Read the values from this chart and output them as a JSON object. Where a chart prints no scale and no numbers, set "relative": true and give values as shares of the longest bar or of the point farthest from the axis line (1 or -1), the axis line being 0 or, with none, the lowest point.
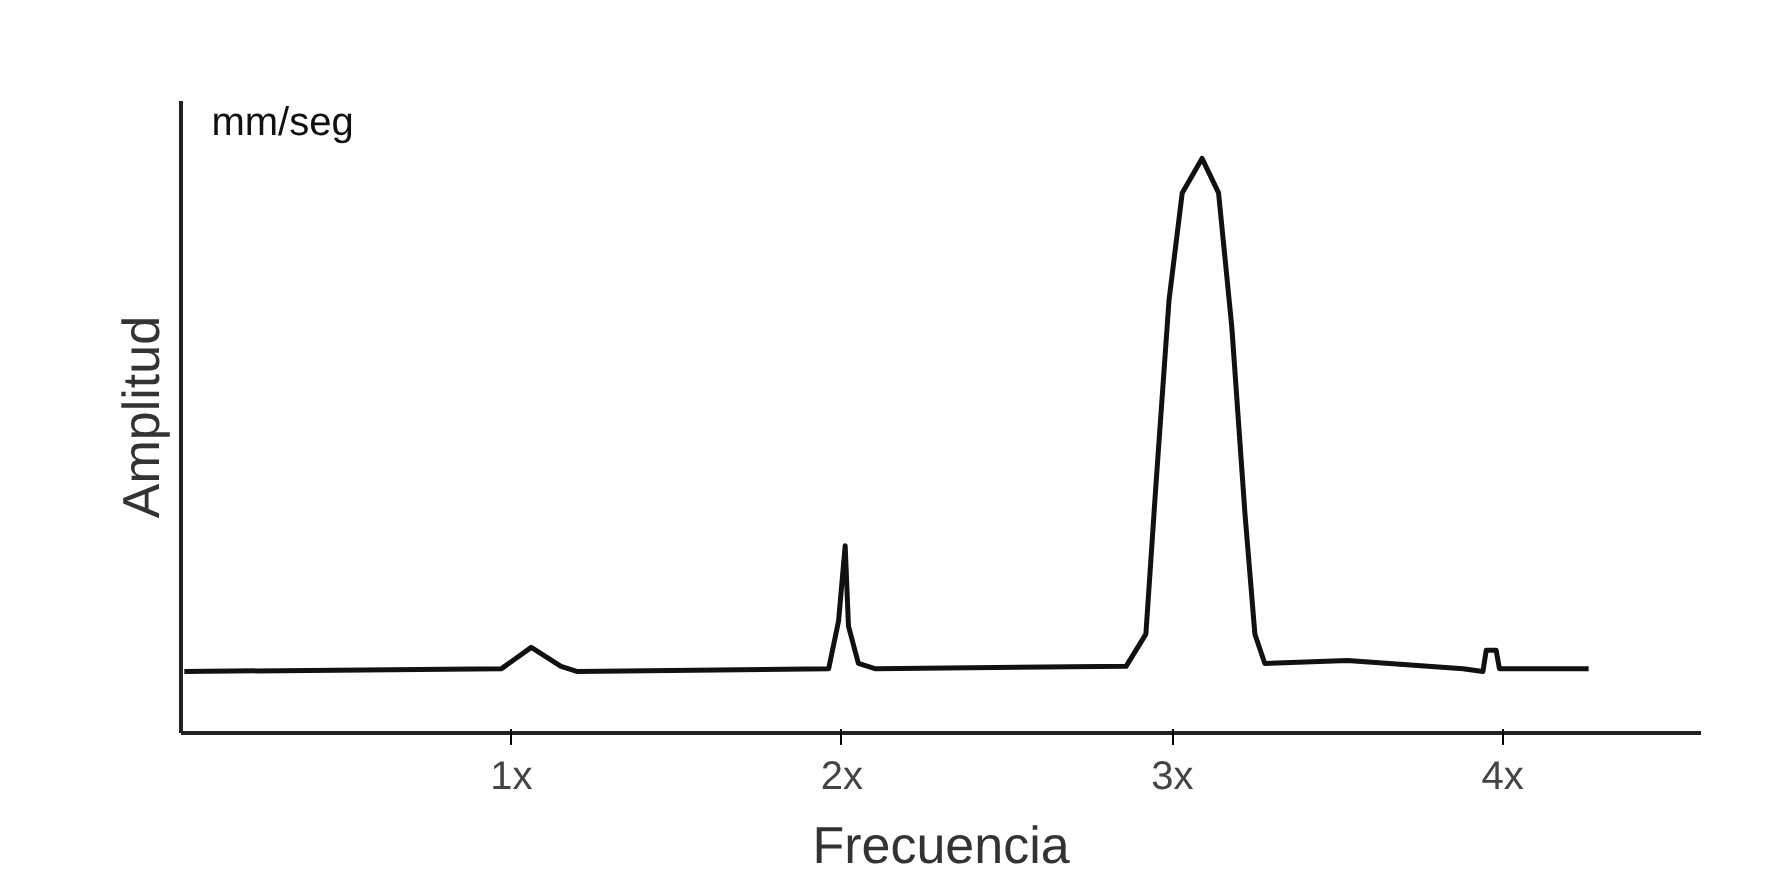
{
  "chart_data": {
    "type": "line",
    "relative": true,
    "xlabel": "Frecuencia",
    "ylabel": "Amplitud",
    "annotations": [
      "mm/seg"
    ],
    "xlim": [
      0,
      4.6
    ],
    "xticks": [
      {
        "value": 1,
        "label": "1x"
      },
      {
        "value": 2,
        "label": "2x"
      },
      {
        "value": 3,
        "label": "3x"
      },
      {
        "value": 4,
        "label": "4x"
      }
    ],
    "tick_labels": "x",
    "grid": false,
    "marker": "none",
    "line_style": "solid",
    "series": [
      {
        "color": "#111111",
        "x": [
          0.01,
          0.97,
          1.06,
          1.15,
          1.2,
          1.96,
          1.99,
          2.01,
          2.02,
          2.05,
          2.1,
          2.86,
          2.92,
          2.95,
          2.99,
          3.03,
          3.09,
          3.14,
          3.18,
          3.22,
          3.25,
          3.28,
          3.53,
          3.88,
          3.94,
          3.95,
          3.98,
          3.99,
          4.26
        ],
        "values": [
          0.107,
          0.112,
          0.149,
          0.116,
          0.107,
          0.112,
          0.195,
          0.326,
          0.186,
          0.121,
          0.112,
          0.116,
          0.172,
          0.428,
          0.753,
          0.94,
          1.0,
          0.94,
          0.707,
          0.381,
          0.172,
          0.121,
          0.126,
          0.112,
          0.107,
          0.144,
          0.144,
          0.112,
          0.112
        ]
      }
    ]
  }
}
